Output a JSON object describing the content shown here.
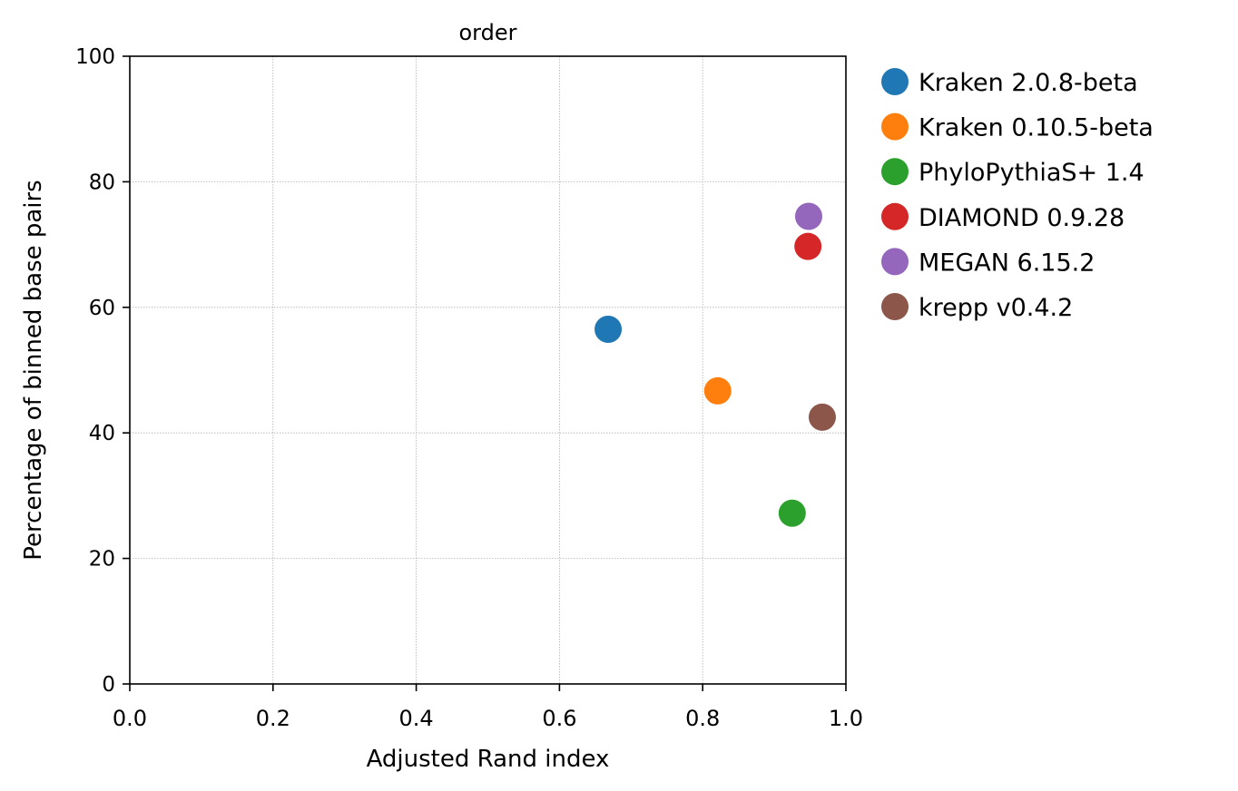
{
  "chart_data": {
    "type": "scatter",
    "title": "order",
    "xlabel": "Adjusted Rand index",
    "ylabel": "Percentage of binned base pairs",
    "xlim": [
      0.0,
      1.0
    ],
    "ylim": [
      0,
      100
    ],
    "xticks": [
      "0.0",
      "0.2",
      "0.4",
      "0.6",
      "0.8",
      "1.0"
    ],
    "yticks": [
      "0",
      "20",
      "40",
      "60",
      "80",
      "100"
    ],
    "grid": true,
    "legend_position": "outside-right",
    "series": [
      {
        "name": "Kraken 2.0.8-beta",
        "color": "#1f77b4",
        "x": 0.668,
        "y": 56.5
      },
      {
        "name": "Kraken 0.10.5-beta",
        "color": "#ff7f0e",
        "x": 0.821,
        "y": 46.7
      },
      {
        "name": "PhyloPythiaS+ 1.4",
        "color": "#2ca02c",
        "x": 0.925,
        "y": 27.2
      },
      {
        "name": "DIAMOND 0.9.28",
        "color": "#d62728",
        "x": 0.947,
        "y": 69.7
      },
      {
        "name": "MEGAN 6.15.2",
        "color": "#9467bd",
        "x": 0.948,
        "y": 74.5
      },
      {
        "name": "krepp v0.4.2",
        "color": "#8c564b",
        "x": 0.967,
        "y": 42.5
      }
    ]
  }
}
